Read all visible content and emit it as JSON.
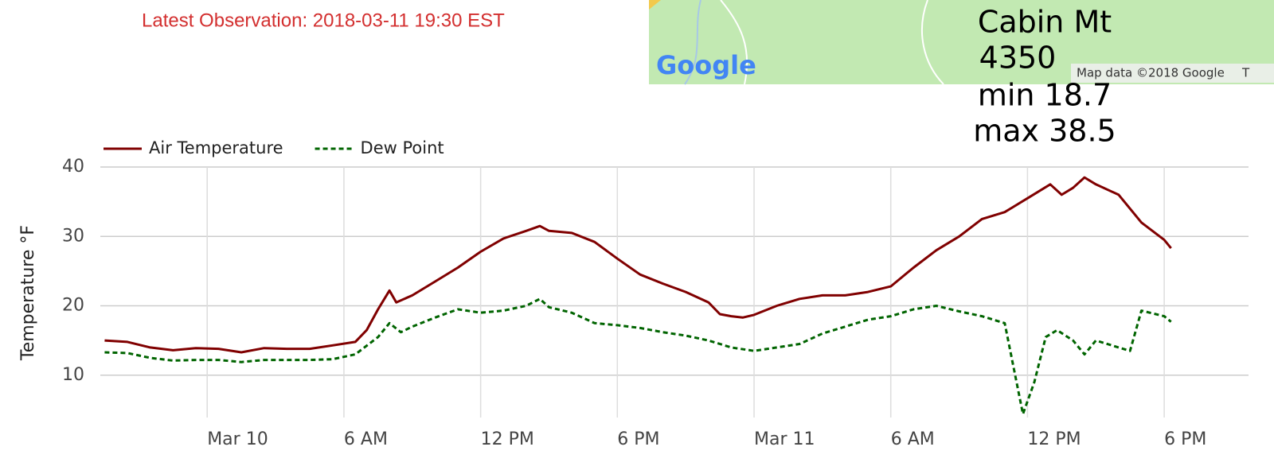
{
  "header": {
    "observation": "Latest Observation: 2018-03-11 19:30 EST"
  },
  "map": {
    "logo": "Google",
    "attribution": "Map data ©2018 Google",
    "cut": "T"
  },
  "station": {
    "name": "Cabin Mt",
    "elevation": "4350",
    "min": "min 18.7",
    "max": "max 38.5"
  },
  "chart_data": {
    "type": "line",
    "ylabel": "Temperature °F",
    "legend": "top",
    "grid": true,
    "ylim": [
      3.9,
      40
    ],
    "yticks": [
      10,
      20,
      30,
      40
    ],
    "xlim": [
      -4.55,
      45.7
    ],
    "xticks": [
      {
        "value": 0,
        "label": "Mar 10"
      },
      {
        "value": 6,
        "label": "6 AM"
      },
      {
        "value": 12,
        "label": "12 PM"
      },
      {
        "value": 18,
        "label": "6 PM"
      },
      {
        "value": 24,
        "label": "Mar 11"
      },
      {
        "value": 30,
        "label": "6 AM"
      },
      {
        "value": 36,
        "label": "12 PM"
      },
      {
        "value": 42,
        "label": "6 PM"
      }
    ],
    "series": [
      {
        "name": "Air Temperature",
        "color": "#800000",
        "dash": false,
        "x": [
          -4.5,
          -3.5,
          -2.5,
          -1.5,
          -0.5,
          0.5,
          1.5,
          2.5,
          3.5,
          4.5,
          5.5,
          6.5,
          7,
          7.5,
          8,
          8.3,
          9,
          10,
          11,
          12,
          13,
          14,
          14.6,
          15,
          16,
          17,
          18,
          19,
          20,
          21,
          22,
          22.5,
          23,
          23.5,
          24,
          25,
          26,
          27,
          28,
          29,
          30,
          31,
          32,
          33,
          34,
          35,
          36,
          37,
          37.5,
          38,
          38.5,
          39,
          40,
          41,
          42,
          42.3
        ],
        "values": [
          15.0,
          14.8,
          14.0,
          13.6,
          13.9,
          13.8,
          13.3,
          13.9,
          13.8,
          13.8,
          14.3,
          14.8,
          16.5,
          19.5,
          22.2,
          20.5,
          21.5,
          23.5,
          25.5,
          27.8,
          29.7,
          30.8,
          31.5,
          30.8,
          30.5,
          29.2,
          26.8,
          24.5,
          23.2,
          22.0,
          20.5,
          18.8,
          18.5,
          18.3,
          18.7,
          20.0,
          21.0,
          21.5,
          21.5,
          22.0,
          22.8,
          25.5,
          28.0,
          30.0,
          32.5,
          33.5,
          35.5,
          37.5,
          36.0,
          37.0,
          38.5,
          37.5,
          36.0,
          32.0,
          29.5,
          28.3
        ]
      },
      {
        "name": "Dew Point",
        "color": "#006400",
        "dash": true,
        "x": [
          -4.5,
          -3.5,
          -2.5,
          -1.5,
          -0.5,
          0.5,
          1.5,
          2.5,
          3.5,
          4.5,
          5.5,
          6.5,
          7.5,
          8,
          8.5,
          9,
          10,
          11,
          12,
          13,
          14,
          14.6,
          15,
          16,
          17,
          18,
          19,
          20,
          21,
          22,
          23,
          24,
          25,
          26,
          27,
          28,
          29,
          30,
          31,
          32,
          33,
          34,
          35,
          35.8,
          36.3,
          36.8,
          37.3,
          38,
          38.5,
          39,
          40,
          40.5,
          41,
          42,
          42.3
        ],
        "values": [
          13.3,
          13.2,
          12.5,
          12.1,
          12.2,
          12.2,
          11.9,
          12.2,
          12.2,
          12.2,
          12.3,
          13.0,
          15.5,
          17.5,
          16.2,
          17.0,
          18.3,
          19.5,
          19.0,
          19.3,
          20.0,
          21.0,
          19.8,
          19.0,
          17.5,
          17.2,
          16.8,
          16.2,
          15.7,
          15.0,
          14.0,
          13.5,
          14.0,
          14.5,
          16.0,
          17.0,
          18.0,
          18.5,
          19.5,
          20.0,
          19.2,
          18.5,
          17.5,
          4.4,
          9.0,
          15.5,
          16.5,
          15.0,
          13.0,
          15.0,
          14.0,
          13.5,
          19.3,
          18.5,
          17.7
        ]
      }
    ]
  }
}
